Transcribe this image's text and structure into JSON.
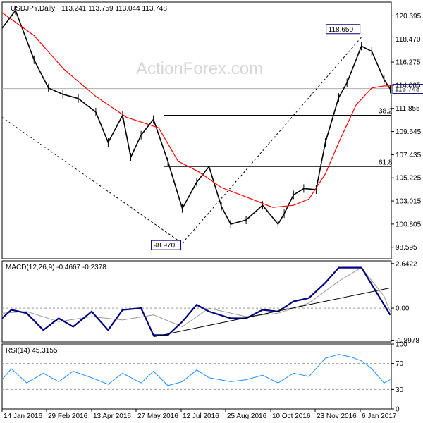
{
  "chart_data": [
    {
      "type": "line",
      "chart_kind": "candlestick",
      "title": "USDJPY,Daily",
      "ohlc_label": "113.241 113.759 113.044 113.748",
      "watermark": "ActionForex.com",
      "ylim": [
        97.5,
        122.0
      ],
      "y_ticks": [
        "120.695",
        "118.470",
        "116.275",
        "114.065",
        "111.855",
        "109.645",
        "107.435",
        "105.225",
        "103.015",
        "100.805",
        "98.595"
      ],
      "y_tick_values": [
        120.695,
        118.47,
        116.275,
        114.065,
        111.855,
        109.645,
        107.435,
        105.225,
        103.015,
        100.805,
        98.595
      ],
      "x_ticks": [
        "14 Jan 2016",
        "29 Feb 2016",
        "13 Apr 2016",
        "27 May 2016",
        "12 Jul 2016",
        "25 Aug 2016",
        "10 Oct 2016",
        "23 Nov 2016",
        "6 Jan 2017"
      ],
      "price_series": {
        "name": "",
        "x": [
          "2016-01-01",
          "2016-01-14",
          "2016-02-01",
          "2016-02-15",
          "2016-02-29",
          "2016-03-15",
          "2016-04-01",
          "2016-04-13",
          "2016-04-27",
          "2016-05-05",
          "2016-05-15",
          "2016-05-27",
          "2016-06-10",
          "2016-06-24",
          "2016-07-08",
          "2016-07-20",
          "2016-08-01",
          "2016-08-10",
          "2016-08-25",
          "2016-09-10",
          "2016-09-25",
          "2016-10-01",
          "2016-10-10",
          "2016-10-20",
          "2016-11-01",
          "2016-11-10",
          "2016-11-23",
          "2016-12-01",
          "2016-12-15",
          "2016-12-25",
          "2017-01-06",
          "2017-01-12"
        ],
        "close": [
          119.5,
          121.2,
          116.5,
          113.8,
          113.2,
          112.8,
          111.5,
          108.6,
          111.2,
          107.2,
          109.3,
          110.8,
          106.8,
          102.3,
          104.8,
          106.3,
          102.5,
          100.8,
          101.2,
          102.6,
          100.8,
          101.8,
          103.6,
          104.2,
          104.1,
          108.6,
          112.9,
          114.3,
          117.8,
          117.3,
          114.6,
          113.7
        ]
      },
      "moving_average": {
        "name": "",
        "x": [
          "2016-01-01",
          "2016-02-01",
          "2016-03-01",
          "2016-04-01",
          "2016-05-01",
          "2016-06-01",
          "2016-06-20",
          "2016-07-10",
          "2016-08-01",
          "2016-08-25",
          "2016-09-20",
          "2016-10-10",
          "2016-10-25",
          "2016-11-10",
          "2016-11-23",
          "2016-12-10",
          "2016-12-25",
          "2017-01-06",
          "2017-01-12"
        ],
        "values": [
          121.0,
          118.8,
          115.6,
          113.0,
          111.0,
          110.0,
          106.8,
          105.8,
          104.3,
          103.4,
          102.4,
          102.6,
          103.2,
          105.6,
          108.6,
          112.2,
          113.8,
          114.0,
          114.0
        ]
      },
      "colors": {
        "candle": "#000000",
        "moving_average": "#ff0000",
        "trendline": "#000000"
      },
      "annotations": [
        {
          "label": "118.650",
          "x": "2016-12-15",
          "y": 118.65,
          "boxed": true
        },
        {
          "label": "98.970",
          "x": "2016-06-24",
          "y": 98.97,
          "boxed": true
        },
        {
          "label": "113.748",
          "y": 113.748,
          "position": "right-axis",
          "boxed": true
        }
      ],
      "fib_levels": [
        {
          "label": "38.2",
          "y": 111.2
        },
        {
          "label": "61.8",
          "y": 106.3
        }
      ]
    },
    {
      "type": "line",
      "title": "MACD(12,26,9) -0.4667 -0.2378",
      "ylim": [
        -2.0,
        2.8
      ],
      "y_ticks": [
        "2.6422",
        "0.00",
        "-1.8978"
      ],
      "y_tick_values": [
        2.6422,
        0.0,
        -1.8978
      ],
      "series": [
        {
          "name": "",
          "color": "#000080",
          "x": [
            "2016-01-01",
            "2016-01-10",
            "2016-01-25",
            "2016-02-10",
            "2016-02-25",
            "2016-03-10",
            "2016-03-28",
            "2016-04-13",
            "2016-04-27",
            "2016-05-15",
            "2016-05-27",
            "2016-06-10",
            "2016-06-24",
            "2016-07-08",
            "2016-07-20",
            "2016-08-10",
            "2016-08-25",
            "2016-09-10",
            "2016-09-25",
            "2016-10-10",
            "2016-10-25",
            "2016-11-10",
            "2016-11-23",
            "2016-12-05",
            "2016-12-15",
            "2016-12-25",
            "2017-01-06",
            "2017-01-12"
          ],
          "values": [
            -0.6,
            -0.1,
            -0.3,
            -1.3,
            -0.6,
            -1.1,
            -0.2,
            -1.3,
            -0.1,
            0.0,
            -1.6,
            -1.6,
            -0.8,
            0.2,
            -0.2,
            -0.6,
            -0.6,
            -0.1,
            -0.2,
            0.4,
            0.6,
            1.5,
            2.4,
            2.4,
            2.4,
            1.4,
            0.2,
            -0.4
          ]
        },
        {
          "name": "",
          "color": "#999999",
          "x": [
            "2016-01-01",
            "2016-01-25",
            "2016-02-25",
            "2016-03-28",
            "2016-04-27",
            "2016-05-27",
            "2016-06-24",
            "2016-07-20",
            "2016-08-25",
            "2016-09-25",
            "2016-10-25",
            "2016-11-23",
            "2016-12-15",
            "2017-01-06",
            "2017-01-12"
          ],
          "values": [
            -0.3,
            -0.2,
            -0.8,
            -0.5,
            -0.7,
            -0.4,
            -1.1,
            0.0,
            -0.5,
            -0.3,
            0.3,
            1.6,
            2.4,
            0.7,
            -0.2
          ]
        }
      ],
      "trendline": {
        "x": [
          "2016-05-27",
          "2017-01-12"
        ],
        "y": [
          -1.7,
          1.2
        ]
      }
    },
    {
      "type": "line",
      "title": "RSI(14) 45.3155",
      "ylim": [
        0,
        100
      ],
      "y_ticks": [
        "100",
        "70",
        "30",
        "0"
      ],
      "y_tick_values": [
        100,
        70,
        30,
        0
      ],
      "series": [
        {
          "name": "",
          "color": "#1e90ff",
          "x": [
            "2016-01-01",
            "2016-01-10",
            "2016-01-25",
            "2016-02-10",
            "2016-02-25",
            "2016-03-10",
            "2016-03-28",
            "2016-04-13",
            "2016-04-27",
            "2016-05-15",
            "2016-05-27",
            "2016-06-10",
            "2016-06-24",
            "2016-07-08",
            "2016-07-20",
            "2016-08-10",
            "2016-08-25",
            "2016-09-10",
            "2016-09-25",
            "2016-10-10",
            "2016-10-25",
            "2016-11-10",
            "2016-11-23",
            "2016-12-05",
            "2016-12-15",
            "2016-12-25",
            "2017-01-06",
            "2017-01-12"
          ],
          "values": [
            45,
            62,
            40,
            55,
            42,
            58,
            48,
            38,
            55,
            40,
            58,
            36,
            42,
            60,
            48,
            42,
            45,
            52,
            40,
            55,
            50,
            78,
            84,
            80,
            74,
            62,
            40,
            45
          ]
        }
      ]
    }
  ]
}
